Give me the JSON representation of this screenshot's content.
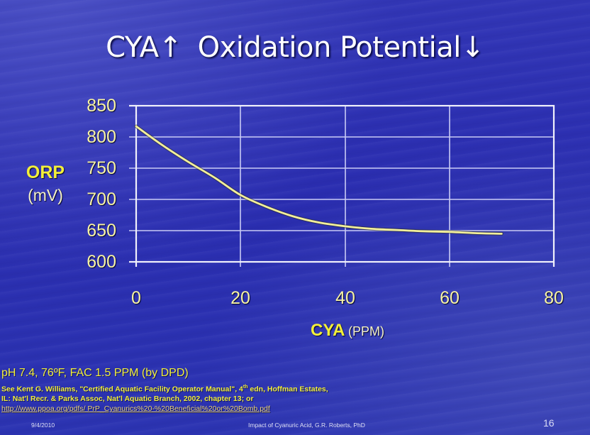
{
  "slide": {
    "title_left": "CYA↑",
    "title_right": "Oxidation Potential↓",
    "footnotes": {
      "conditions": "pH 7.4, 76ºF, FAC 1.5 PPM (by DPD)",
      "ref_line1_a": "See Kent G. Williams, \"Certified Aquatic Facility Operator Manual\", 4",
      "ref_line1_sup": "th",
      "ref_line1_b": " edn, Hoffman Estates,",
      "ref_line2": "IL: Nat'l Recr. & Parks Assoc, Nat'l Aquatic Branch, 2002, chapter 13; or",
      "ref_url": "http://www.ppoa.org/pdfs/ PrP_Cyanurics%20-%20Beneficial%20or%20Bomb.pdf"
    },
    "footer": {
      "date": "9/4/2010",
      "presenter": "Impact of Cyanuric Acid, G.R. Roberts, PhD",
      "page_number": "16"
    }
  },
  "chart_data": {
    "type": "line",
    "title": "CYA↑ Oxidation Potential↓",
    "xlabel": "CYA (PPM)",
    "xlabel_main": "CYA",
    "xlabel_unit": "(PPM)",
    "ylabel": "ORP (mV)",
    "ylabel_main": "ORP",
    "ylabel_unit": "(mV)",
    "xlim": [
      0,
      80
    ],
    "ylim": [
      600,
      850
    ],
    "x_ticks": [
      "0",
      "20",
      "40",
      "60",
      "80"
    ],
    "y_ticks": [
      "850",
      "800",
      "750",
      "700",
      "650",
      "600"
    ],
    "grid": true,
    "legend": null,
    "series": [
      {
        "name": "ORP",
        "color": "#f2ef9a",
        "x": [
          0,
          5,
          10,
          15,
          20,
          25,
          30,
          35,
          40,
          45,
          50,
          55,
          60,
          65,
          70
        ],
        "values": [
          817,
          787,
          760,
          735,
          707,
          688,
          673,
          663,
          657,
          653,
          651,
          649,
          648,
          646,
          645
        ]
      }
    ]
  }
}
